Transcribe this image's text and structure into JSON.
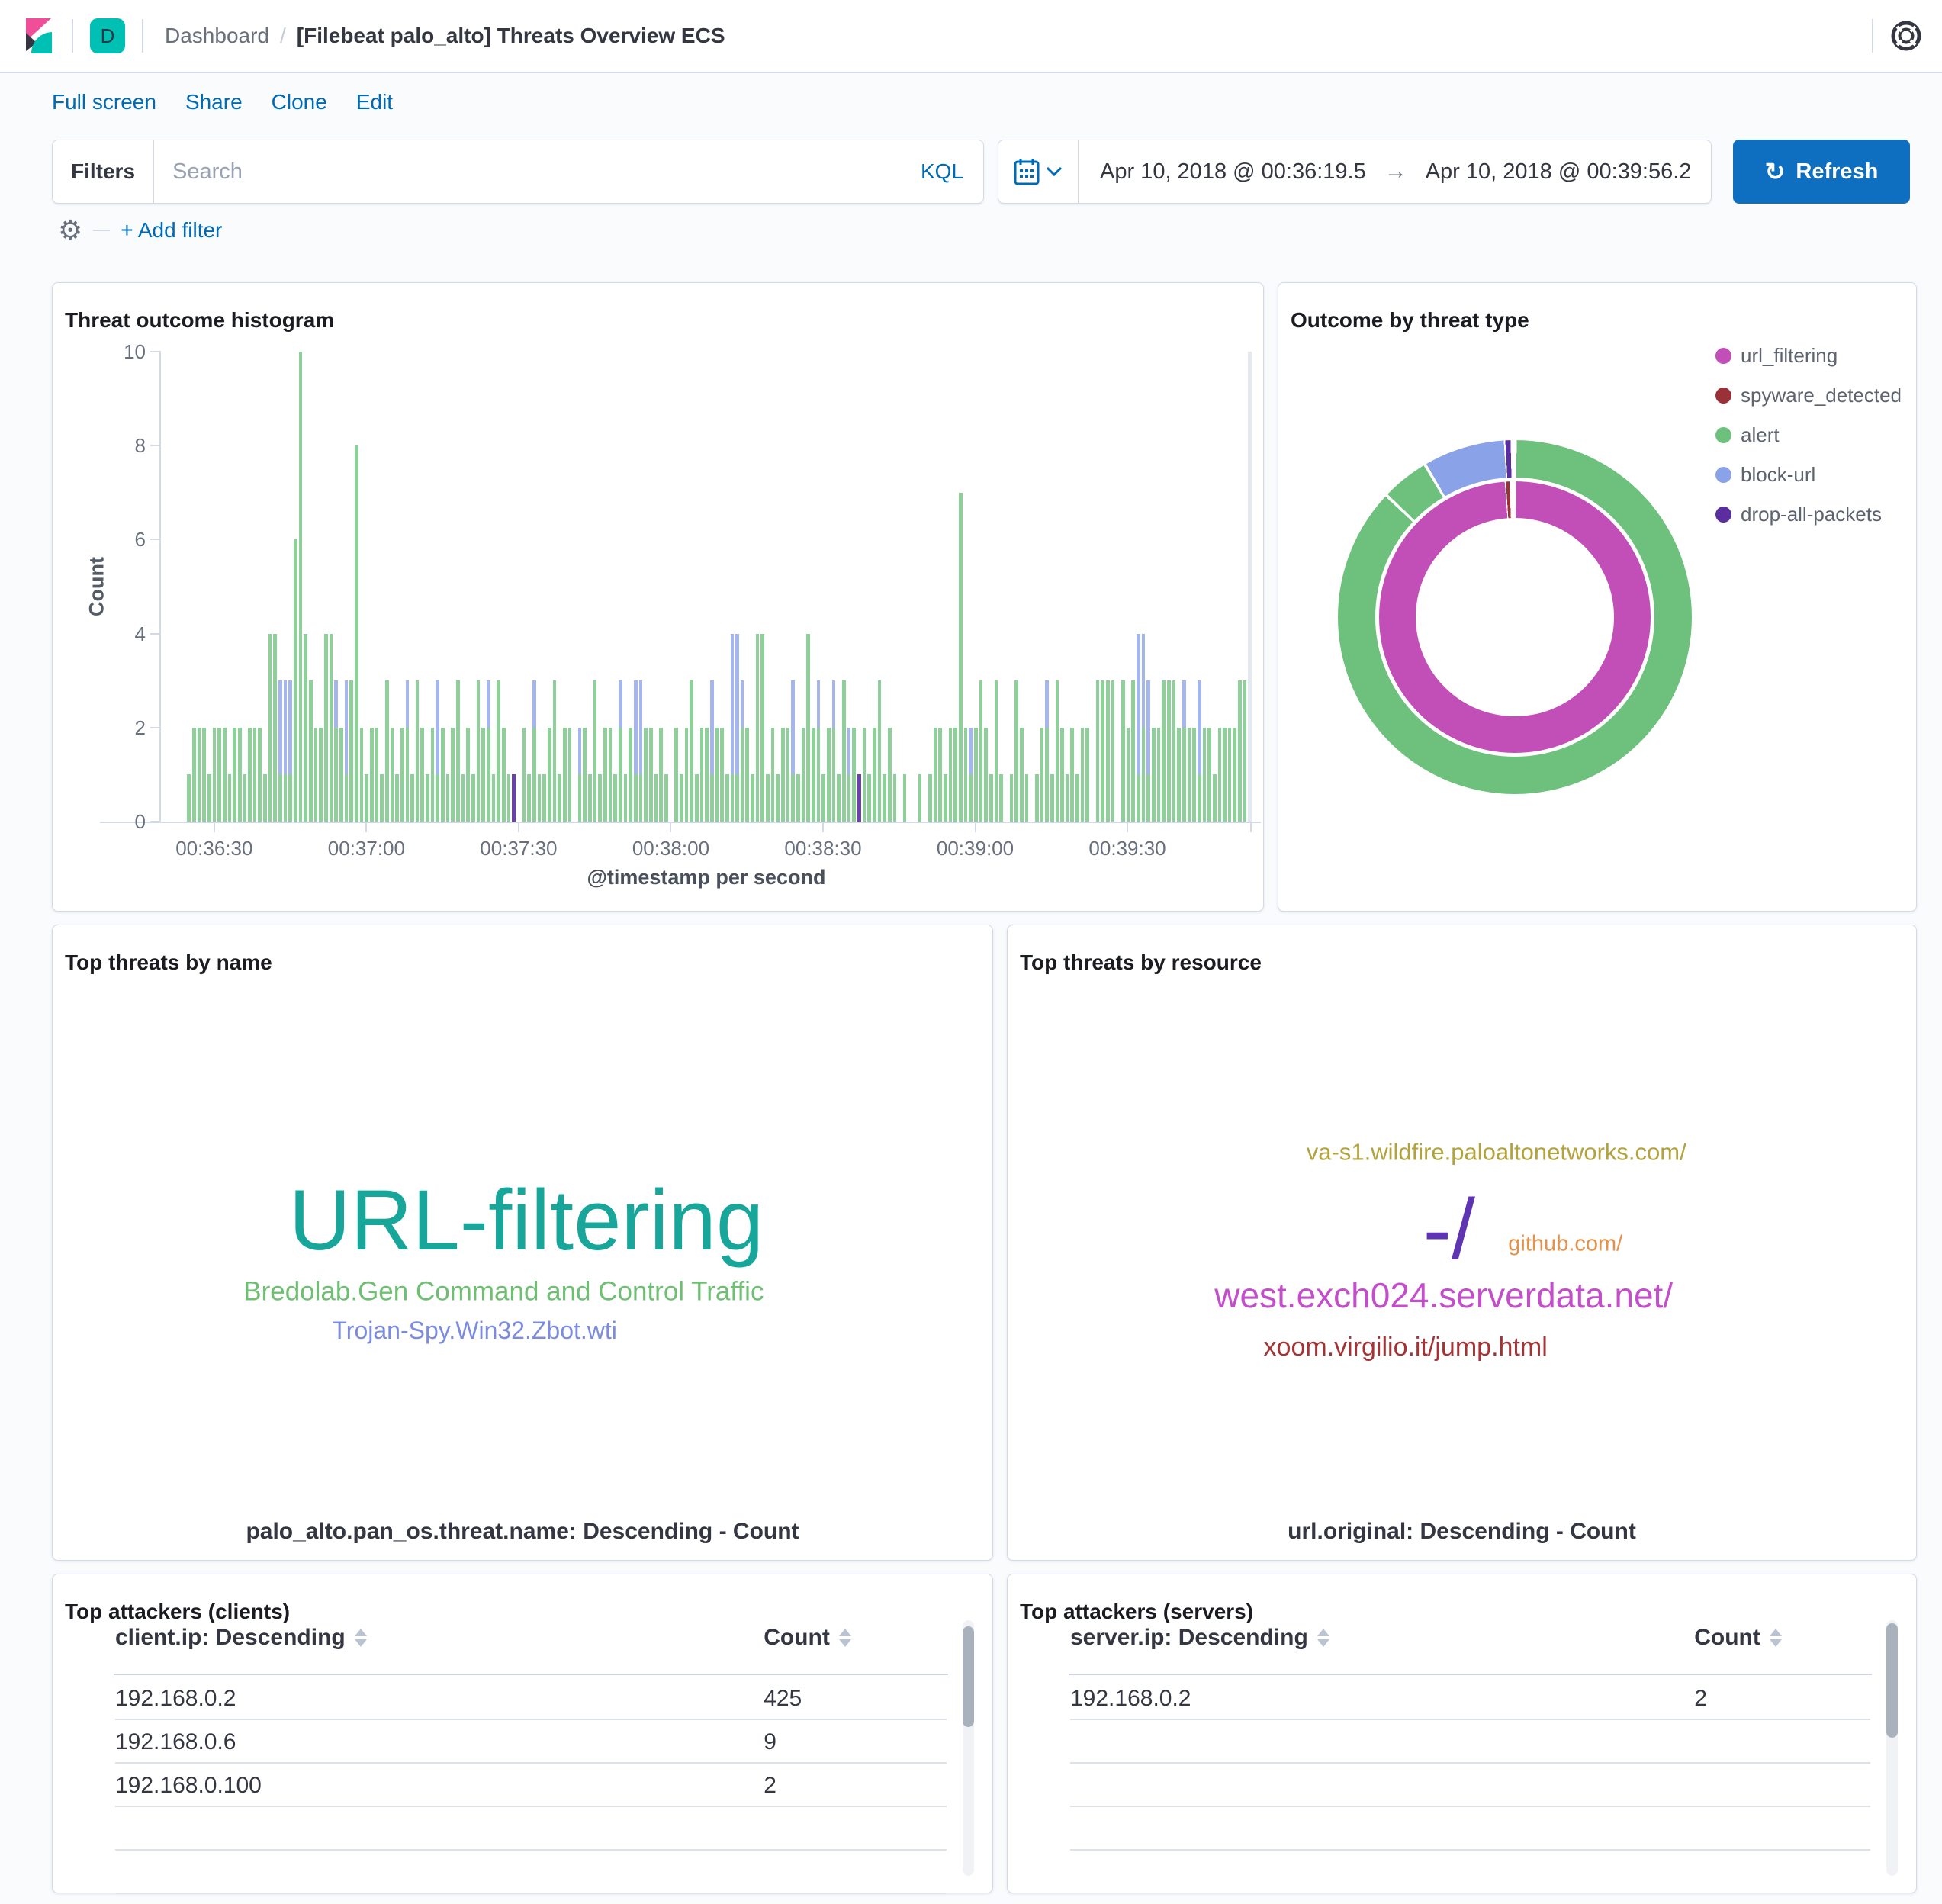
{
  "nav": {
    "space_initial": "D",
    "breadcrumb_section": "Dashboard",
    "breadcrumb_sep": "/",
    "title": "[Filebeat palo_alto] Threats Overview ECS"
  },
  "menu": {
    "items": [
      "Full screen",
      "Share",
      "Clone",
      "Edit"
    ]
  },
  "query_bar": {
    "filters_label": "Filters",
    "search_placeholder": "Search",
    "kql_label": "KQL",
    "add_filter_label": "+ Add filter"
  },
  "time_picker": {
    "start": "Apr 10, 2018 @ 00:36:19.5",
    "arrow": "→",
    "end": "Apr 10, 2018 @ 00:39:56.2",
    "refresh_label": "Refresh",
    "refresh_icon": "↻"
  },
  "colors": {
    "url_filtering": "#c24fb7",
    "spyware_detected": "#9a3038",
    "alert": "#6ec17d",
    "block-url": "#8aa2e8",
    "drop-all-packets": "#5b2ea0",
    "endzone": "#e4e8ef",
    "accent_blue": "#006bb4"
  },
  "chart_data": {
    "histogram": {
      "type": "bar",
      "title": "Threat outcome histogram",
      "xlabel": "@timestamp per second",
      "ylabel": "Count",
      "ylim": [
        0,
        10
      ],
      "yticks": [
        0,
        2,
        4,
        6,
        8,
        10
      ],
      "x_start": "00:36:19.5",
      "x_end": "00:39:56.2",
      "grid": false,
      "legend_position": "none",
      "series_order": [
        "alert",
        "block-url",
        "drop-all-packets"
      ],
      "bar_encoding": "each entry = one 1-second bucket, 'alert.block-url.drop-all-packets' stacked counts; '0' = empty bucket; 'E' = light-gray partial-bucket endzone marker",
      "xticks": [
        {
          "label": "00:36:30",
          "slot": 10.5
        },
        {
          "label": "00:37:00",
          "slot": 40.5
        },
        {
          "label": "00:37:30",
          "slot": 70.5
        },
        {
          "label": "00:38:00",
          "slot": 100.5
        },
        {
          "label": "00:38:30",
          "slot": 130.5
        },
        {
          "label": "00:39:00",
          "slot": 160.5
        },
        {
          "label": "00:39:30",
          "slot": 190.5
        }
      ],
      "bars": [
        "0",
        "0",
        "0",
        "0",
        "0",
        "1",
        "2",
        "2",
        "2",
        "1",
        "2",
        "2",
        "2",
        "1",
        "2",
        "2",
        "1",
        "2",
        "2",
        "2",
        "1",
        "4",
        "4",
        "1.2",
        "1.2",
        "1.2",
        "6",
        "10",
        "4",
        "3",
        "2",
        "2",
        "4",
        "4",
        "2.1",
        "2",
        "1.2",
        "3",
        "8",
        "2",
        "1",
        "2",
        "2",
        "1",
        "3",
        "2",
        "1",
        "2",
        "2.1",
        "1",
        "3",
        "2",
        "1",
        "2",
        "1.2",
        "2",
        "1",
        "2",
        "3",
        "1",
        "2",
        "1",
        "3",
        "2",
        "2.1",
        "1",
        "3",
        "2",
        "1",
        "0.0.1",
        "0",
        "2",
        "1",
        "2.1",
        "1",
        "1",
        "2",
        "3",
        "1",
        "2",
        "2",
        "0",
        "1.1",
        "2",
        "1",
        "3",
        "1",
        "2",
        "2",
        "1",
        "2.1",
        "1",
        "2",
        "1.2",
        "1.2",
        "2",
        "2",
        "1",
        "2",
        "1",
        "0",
        "2",
        "1",
        "2",
        "3",
        "1",
        "2",
        "2",
        "1.2",
        "2",
        "2",
        "1",
        "1.3",
        "1.3",
        "2.1",
        "2",
        "1",
        "4",
        "4",
        "1",
        "2",
        "1",
        "2",
        "2",
        "1.2",
        "1",
        "2",
        "4",
        "2",
        "2.1",
        "1",
        "2",
        "2.1",
        "1",
        "3",
        "1.1",
        "2",
        "0.0.1",
        "2",
        "1",
        "2",
        "3",
        "1",
        "2",
        "1",
        "0",
        "1",
        "0",
        "0",
        "1",
        "0",
        "1",
        "2",
        "2",
        "1",
        "2",
        "2",
        "7",
        "2",
        "1.1",
        "2",
        "3",
        "2",
        "1",
        "3",
        "1",
        "0",
        "1",
        "3",
        "2",
        "1",
        "0",
        "1",
        "2",
        "2.1",
        "1",
        "3",
        "2",
        "1",
        "2",
        "1",
        "2",
        "2",
        "0",
        "3",
        "3",
        "3",
        "3",
        "0",
        "3",
        "2",
        "3",
        "1.3",
        "2.2",
        "1.2",
        "2",
        "2",
        "3",
        "3",
        "3",
        "2",
        "2.1",
        "2",
        "2",
        "1.2",
        "2",
        "2",
        "1",
        "2",
        "2",
        "2",
        "2",
        "3",
        "3",
        "E"
      ]
    },
    "donut": {
      "type": "pie",
      "title": "Outcome by threat type",
      "style": "double-ring donut, inner ring = threat type, outer ring = outcome action",
      "rings": {
        "inner": [
          {
            "label": "url_filtering",
            "start_deg": 0.5,
            "end_deg": 355.7
          },
          {
            "label": "spyware_detected",
            "start_deg": 356.2,
            "end_deg": 357.7
          }
        ],
        "outer": [
          {
            "label": "alert",
            "start_deg": 0.6,
            "end_deg": 313
          },
          {
            "label": "alert",
            "start_deg": 314,
            "end_deg": 329
          },
          {
            "label": "block-url",
            "start_deg": 330,
            "end_deg": 356.4
          },
          {
            "label": "drop-all-packets",
            "start_deg": 356.9,
            "end_deg": 358.6
          }
        ]
      },
      "legend_position": "right",
      "legend": [
        "url_filtering",
        "spyware_detected",
        "alert",
        "block-url",
        "drop-all-packets"
      ]
    },
    "tag_clouds": [
      {
        "type": "tagcloud",
        "title": "Top threats by name",
        "footer": "palo_alto.pan_os.threat.name: Descending - Count",
        "tags": [
          {
            "text": "URL-filtering",
            "size": 112,
            "color": "#18a69b",
            "x_pct": 50.4,
            "y_pct": 46.5
          },
          {
            "text": "Bredolab.Gen Command and Control Traffic",
            "size": 35,
            "color": "#6fbf73",
            "x_pct": 48.0,
            "y_pct": 57.7
          },
          {
            "text": "Trojan-Spy.Win32.Zbot.wti",
            "size": 32,
            "color": "#7b8ce0",
            "x_pct": 44.9,
            "y_pct": 63.8
          }
        ]
      },
      {
        "type": "tagcloud",
        "title": "Top threats by resource",
        "footer": "url.original: Descending - Count",
        "tags": [
          {
            "text": "va-s1.wildfire.paloaltonetworks.com/",
            "size": 31,
            "color": "#b2a33c",
            "x_pct": 53.8,
            "y_pct": 35.7
          },
          {
            "text": "-/",
            "size": 112,
            "color": "#5e34b2",
            "x_pct": 48.6,
            "y_pct": 48.0
          },
          {
            "text": "github.com/",
            "size": 29,
            "color": "#e2924d",
            "x_pct": 61.4,
            "y_pct": 50.3
          },
          {
            "text": "west.exch024.serverdata.net/",
            "size": 46,
            "color": "#c24fc9",
            "x_pct": 48.0,
            "y_pct": 58.3
          },
          {
            "text": "xoom.virgilio.it/jump.html",
            "size": 34,
            "color": "#a33335",
            "x_pct": 43.8,
            "y_pct": 66.5
          }
        ]
      }
    ],
    "tables": [
      {
        "type": "table",
        "title": "Top attackers (clients)",
        "columns": [
          "client.ip: Descending",
          "Count"
        ],
        "rows": [
          [
            "192.168.0.2",
            "425"
          ],
          [
            "192.168.0.6",
            "9"
          ],
          [
            "192.168.0.100",
            "2"
          ]
        ],
        "empty_rows": 2
      },
      {
        "type": "table",
        "title": "Top attackers (servers)",
        "columns": [
          "server.ip: Descending",
          "Count"
        ],
        "rows": [
          [
            "192.168.0.2",
            "2"
          ]
        ],
        "empty_rows": 3
      }
    ]
  }
}
